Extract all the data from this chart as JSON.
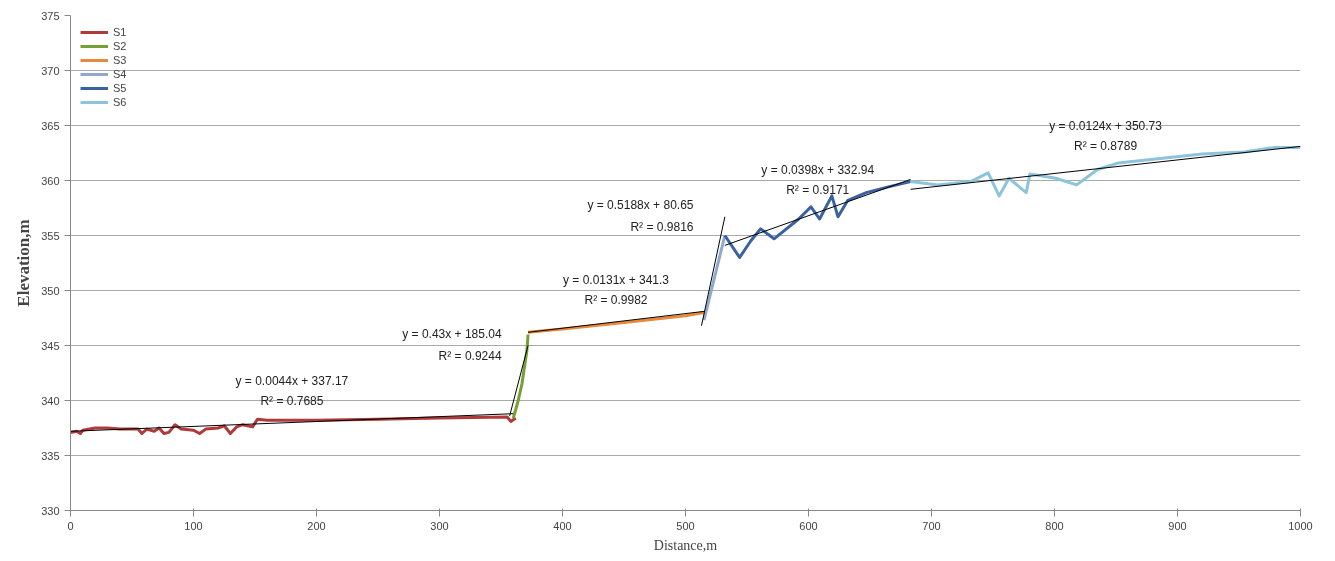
{
  "chart_data": {
    "type": "line",
    "xlabel": "Distance,m",
    "ylabel": "Elevation,m",
    "xlim": [
      0,
      1000
    ],
    "ylim": [
      330,
      375
    ],
    "xticks": [
      0,
      100,
      200,
      300,
      400,
      500,
      600,
      700,
      800,
      900,
      1000
    ],
    "yticks": [
      330,
      335,
      340,
      345,
      350,
      355,
      360,
      365,
      370,
      375
    ],
    "grid": "y",
    "legend": "top left",
    "line_style": "solid",
    "marker": "none",
    "series": [
      {
        "name": "S1",
        "color": "#b03a3a",
        "x": [
          0,
          5,
          8,
          10,
          20,
          30,
          40,
          55,
          58,
          62,
          68,
          72,
          76,
          80,
          85,
          90,
          100,
          105,
          110,
          120,
          125,
          130,
          135,
          140,
          148,
          152,
          160,
          200,
          250,
          300,
          355,
          358,
          362
        ],
        "values": [
          337.1,
          337.2,
          337.0,
          337.3,
          337.5,
          337.5,
          337.4,
          337.4,
          337.0,
          337.4,
          337.2,
          337.5,
          337.0,
          337.1,
          337.8,
          337.4,
          337.3,
          337.0,
          337.4,
          337.5,
          337.7,
          337.0,
          337.6,
          337.8,
          337.6,
          338.3,
          338.2,
          338.2,
          338.3,
          338.4,
          338.5,
          338.1,
          338.4
        ]
      },
      {
        "name": "S2",
        "color": "#77a033",
        "x": [
          360,
          364,
          367,
          369,
          371,
          372
        ],
        "values": [
          338.4,
          340.0,
          341.5,
          343.0,
          344.5,
          346.0
        ]
      },
      {
        "name": "S3",
        "color": "#e8883a",
        "x": [
          372,
          400,
          450,
          500,
          515
        ],
        "values": [
          346.2,
          346.5,
          347.1,
          347.7,
          348.0
        ]
      },
      {
        "name": "S4",
        "color": "#8fa8cc",
        "x": [
          515,
          532
        ],
        "values": [
          347.3,
          355.0
        ]
      },
      {
        "name": "S5",
        "color": "#3a62a0",
        "x": [
          532,
          544,
          553,
          561,
          572,
          592,
          602,
          609,
          619,
          624,
          632,
          647,
          664,
          683
        ],
        "values": [
          355.0,
          353.0,
          354.5,
          355.6,
          354.7,
          356.5,
          357.6,
          356.5,
          358.6,
          356.7,
          358.2,
          358.9,
          359.4,
          359.9
        ]
      },
      {
        "name": "S6",
        "color": "#8cc4dc",
        "x": [
          683,
          705,
          732,
          746,
          755,
          763,
          777,
          780,
          801,
          818,
          835,
          852,
          886,
          920,
          954,
          979,
          1000
        ],
        "values": [
          359.9,
          359.6,
          359.9,
          360.7,
          358.6,
          360.2,
          358.9,
          360.6,
          360.2,
          359.6,
          361.0,
          361.6,
          362.0,
          362.4,
          362.6,
          363.0,
          363.0
        ]
      },
      {
        "color": "#000000",
        "x": [
          0,
          360
        ],
        "values": [
          337.2,
          338.8
        ]
      },
      {
        "color": "#000000",
        "x": [
          357,
          372
        ],
        "values": [
          338.6,
          345.0
        ]
      },
      {
        "color": "#000000",
        "x": [
          372,
          515
        ],
        "values": [
          346.2,
          348.1
        ]
      },
      {
        "color": "#000000",
        "x": [
          513,
          532
        ],
        "values": [
          346.8,
          356.7
        ]
      },
      {
        "color": "#000000",
        "x": [
          532,
          683
        ],
        "values": [
          354.1,
          360.1
        ]
      },
      {
        "color": "#000000",
        "x": [
          683,
          1000
        ],
        "values": [
          359.2,
          363.1
        ]
      }
    ],
    "annotations": [
      "y = 0.0044x + 337.17",
      "R² = 0.7685",
      "y = 0.43x + 185.04",
      "R² = 0.9244",
      "y = 0.0131x + 341.3",
      "R² = 0.9982",
      "y = 0.5188x + 80.65",
      "R² = 0.9816",
      "y = 0.0398x + 332.94",
      "R² = 0.9171",
      "y = 0.0124x + 350.73",
      "R² = 0.8789"
    ]
  }
}
